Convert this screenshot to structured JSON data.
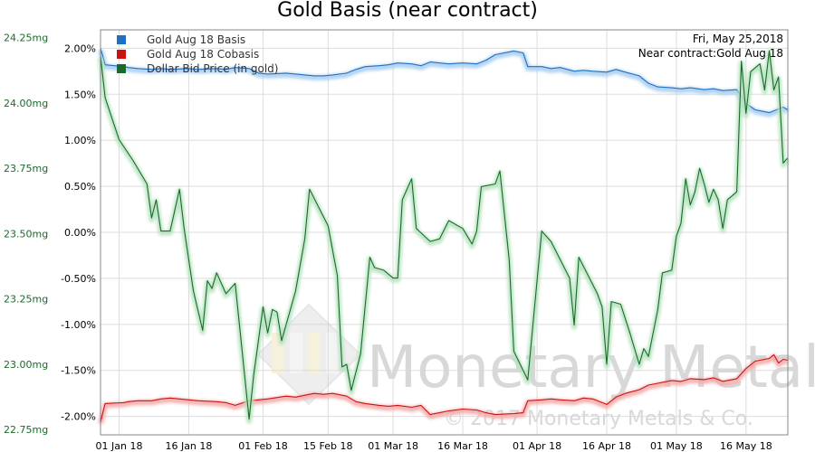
{
  "chart_data": {
    "type": "line",
    "title": "Gold Basis (near contract)",
    "date_label": "Fri, May 25,2018",
    "contract_label": "Near contract:Gold Aug 18",
    "watermark": {
      "brand": "Monetary Metals",
      "copyright": "© 2017 Monetary Metals & Co."
    },
    "grid": true,
    "legend": {
      "placement": "top-left"
    },
    "x_axis": {
      "range": [
        "2017-12-28",
        "2018-05-25"
      ],
      "ticks": [
        {
          "date": "2018-01-01",
          "label": "01 Jan 18"
        },
        {
          "date": "2018-01-16",
          "label": "16 Jan 18"
        },
        {
          "date": "2018-02-01",
          "label": "01 Feb 18"
        },
        {
          "date": "2018-02-15",
          "label": "15 Feb 18"
        },
        {
          "date": "2018-03-01",
          "label": "01 Mar 18"
        },
        {
          "date": "2018-03-16",
          "label": "16 Mar 18"
        },
        {
          "date": "2018-04-01",
          "label": "01 Apr 18"
        },
        {
          "date": "2018-04-16",
          "label": "16 Apr 18"
        },
        {
          "date": "2018-05-01",
          "label": "01 May 18"
        },
        {
          "date": "2018-05-16",
          "label": "16 May 18"
        }
      ]
    },
    "y_right": {
      "range": [
        -2.2,
        2.2
      ],
      "ticks": [
        {
          "value": 2.0,
          "label": "2.00%"
        },
        {
          "value": 1.5,
          "label": "1.50%"
        },
        {
          "value": 1.0,
          "label": "1.00%"
        },
        {
          "value": 0.5,
          "label": "0.50%"
        },
        {
          "value": 0.0,
          "label": "0.00%"
        },
        {
          "value": -0.5,
          "label": "-0.50%"
        },
        {
          "value": -1.0,
          "label": "-1.00%"
        },
        {
          "value": -1.5,
          "label": "-1.50%"
        },
        {
          "value": -2.0,
          "label": "-2.00%"
        }
      ]
    },
    "y_left": {
      "range": [
        22.73,
        24.28
      ],
      "ticks": [
        {
          "value": 24.25,
          "label": "24.25mg"
        },
        {
          "value": 24.0,
          "label": "24.00mg"
        },
        {
          "value": 23.75,
          "label": "23.75mg"
        },
        {
          "value": 23.5,
          "label": "23.50mg"
        },
        {
          "value": 23.25,
          "label": "23.25mg"
        },
        {
          "value": 23.0,
          "label": "23.00mg"
        },
        {
          "value": 22.75,
          "label": "22.75mg"
        }
      ]
    },
    "series": [
      {
        "name": "Gold Aug 18 Basis",
        "axis": "right",
        "color": "#1f6fc2",
        "glow": "#a9cdf0",
        "points": [
          [
            "2017-12-28",
            2.0
          ],
          [
            "2017-12-29",
            1.82
          ],
          [
            "2018-01-02",
            1.8
          ],
          [
            "2018-01-03",
            1.79
          ],
          [
            "2018-01-05",
            1.78
          ],
          [
            "2018-01-08",
            1.77
          ],
          [
            "2018-01-10",
            1.78
          ],
          [
            "2018-01-12",
            1.77
          ],
          [
            "2018-01-16",
            1.78
          ],
          [
            "2018-01-18",
            1.77
          ],
          [
            "2018-01-22",
            1.78
          ],
          [
            "2018-01-24",
            1.77
          ],
          [
            "2018-01-26",
            1.79
          ],
          [
            "2018-01-29",
            1.78
          ],
          [
            "2018-01-31",
            1.73
          ],
          [
            "2018-02-02",
            1.72
          ],
          [
            "2018-02-06",
            1.73
          ],
          [
            "2018-02-08",
            1.72
          ],
          [
            "2018-02-12",
            1.7
          ],
          [
            "2018-02-14",
            1.7
          ],
          [
            "2018-02-16",
            1.71
          ],
          [
            "2018-02-19",
            1.73
          ],
          [
            "2018-02-21",
            1.77
          ],
          [
            "2018-02-23",
            1.8
          ],
          [
            "2018-02-26",
            1.81
          ],
          [
            "2018-02-28",
            1.82
          ],
          [
            "2018-03-02",
            1.84
          ],
          [
            "2018-03-05",
            1.83
          ],
          [
            "2018-03-07",
            1.81
          ],
          [
            "2018-03-09",
            1.85
          ],
          [
            "2018-03-13",
            1.83
          ],
          [
            "2018-03-16",
            1.84
          ],
          [
            "2018-03-19",
            1.83
          ],
          [
            "2018-03-21",
            1.87
          ],
          [
            "2018-03-23",
            1.93
          ],
          [
            "2018-03-27",
            1.97
          ],
          [
            "2018-03-29",
            1.95
          ],
          [
            "2018-03-30",
            1.8
          ],
          [
            "2018-04-02",
            1.8
          ],
          [
            "2018-04-04",
            1.78
          ],
          [
            "2018-04-06",
            1.79
          ],
          [
            "2018-04-09",
            1.75
          ],
          [
            "2018-04-11",
            1.76
          ],
          [
            "2018-04-13",
            1.75
          ],
          [
            "2018-04-16",
            1.74
          ],
          [
            "2018-04-18",
            1.77
          ],
          [
            "2018-04-20",
            1.74
          ],
          [
            "2018-04-23",
            1.7
          ],
          [
            "2018-04-25",
            1.62
          ],
          [
            "2018-04-27",
            1.58
          ],
          [
            "2018-04-30",
            1.57
          ],
          [
            "2018-05-02",
            1.56
          ],
          [
            "2018-05-04",
            1.57
          ],
          [
            "2018-05-07",
            1.55
          ],
          [
            "2018-05-09",
            1.56
          ],
          [
            "2018-05-11",
            1.54
          ],
          [
            "2018-05-14",
            1.55
          ],
          [
            "2018-05-16",
            1.4
          ],
          [
            "2018-05-18",
            1.33
          ],
          [
            "2018-05-21",
            1.3
          ],
          [
            "2018-05-23",
            1.34
          ],
          [
            "2018-05-24",
            1.36
          ],
          [
            "2018-05-25",
            1.33
          ]
        ]
      },
      {
        "name": "Gold Aug 18 Cobasis",
        "axis": "right",
        "color": "#cc1111",
        "glow": "#f2aaaa",
        "points": [
          [
            "2017-12-28",
            -2.06
          ],
          [
            "2017-12-29",
            -1.86
          ],
          [
            "2018-01-02",
            -1.85
          ],
          [
            "2018-01-03",
            -1.84
          ],
          [
            "2018-01-05",
            -1.83
          ],
          [
            "2018-01-08",
            -1.83
          ],
          [
            "2018-01-10",
            -1.81
          ],
          [
            "2018-01-12",
            -1.8
          ],
          [
            "2018-01-16",
            -1.82
          ],
          [
            "2018-01-18",
            -1.83
          ],
          [
            "2018-01-22",
            -1.84
          ],
          [
            "2018-01-24",
            -1.85
          ],
          [
            "2018-01-26",
            -1.88
          ],
          [
            "2018-01-29",
            -1.83
          ],
          [
            "2018-01-31",
            -1.82
          ],
          [
            "2018-02-02",
            -1.81
          ],
          [
            "2018-02-06",
            -1.78
          ],
          [
            "2018-02-08",
            -1.79
          ],
          [
            "2018-02-12",
            -1.75
          ],
          [
            "2018-02-14",
            -1.76
          ],
          [
            "2018-02-16",
            -1.75
          ],
          [
            "2018-02-19",
            -1.78
          ],
          [
            "2018-02-21",
            -1.84
          ],
          [
            "2018-02-23",
            -1.86
          ],
          [
            "2018-02-26",
            -1.88
          ],
          [
            "2018-02-28",
            -1.89
          ],
          [
            "2018-03-02",
            -1.88
          ],
          [
            "2018-03-05",
            -1.9
          ],
          [
            "2018-03-07",
            -1.88
          ],
          [
            "2018-03-09",
            -1.98
          ],
          [
            "2018-03-13",
            -1.94
          ],
          [
            "2018-03-16",
            -1.92
          ],
          [
            "2018-03-19",
            -1.93
          ],
          [
            "2018-03-21",
            -1.96
          ],
          [
            "2018-03-23",
            -1.98
          ],
          [
            "2018-03-27",
            -1.97
          ],
          [
            "2018-03-29",
            -1.96
          ],
          [
            "2018-03-30",
            -1.83
          ],
          [
            "2018-04-02",
            -1.82
          ],
          [
            "2018-04-04",
            -1.81
          ],
          [
            "2018-04-06",
            -1.82
          ],
          [
            "2018-04-09",
            -1.83
          ],
          [
            "2018-04-11",
            -1.8
          ],
          [
            "2018-04-13",
            -1.81
          ],
          [
            "2018-04-16",
            -1.87
          ],
          [
            "2018-04-18",
            -1.79
          ],
          [
            "2018-04-20",
            -1.75
          ],
          [
            "2018-04-23",
            -1.71
          ],
          [
            "2018-04-25",
            -1.66
          ],
          [
            "2018-04-27",
            -1.64
          ],
          [
            "2018-04-30",
            -1.61
          ],
          [
            "2018-05-02",
            -1.62
          ],
          [
            "2018-05-04",
            -1.59
          ],
          [
            "2018-05-07",
            -1.6
          ],
          [
            "2018-05-09",
            -1.58
          ],
          [
            "2018-05-11",
            -1.62
          ],
          [
            "2018-05-14",
            -1.59
          ],
          [
            "2018-05-16",
            -1.48
          ],
          [
            "2018-05-18",
            -1.4
          ],
          [
            "2018-05-21",
            -1.37
          ],
          [
            "2018-05-22",
            -1.33
          ],
          [
            "2018-05-23",
            -1.42
          ],
          [
            "2018-05-24",
            -1.38
          ],
          [
            "2018-05-25",
            -1.39
          ]
        ]
      },
      {
        "name": "Dollar Bid Price (in gold)",
        "axis": "left",
        "color": "#1a6b2a",
        "glow": "#b6e2bf",
        "points": [
          [
            "2017-12-28",
            24.18
          ],
          [
            "2017-12-29",
            24.02
          ],
          [
            "2018-01-01",
            23.86
          ],
          [
            "2018-01-04",
            23.78
          ],
          [
            "2018-01-07",
            23.69
          ],
          [
            "2018-01-08",
            23.56
          ],
          [
            "2018-01-09",
            23.63
          ],
          [
            "2018-01-10",
            23.51
          ],
          [
            "2018-01-12",
            23.51
          ],
          [
            "2018-01-14",
            23.67
          ],
          [
            "2018-01-15",
            23.52
          ],
          [
            "2018-01-17",
            23.28
          ],
          [
            "2018-01-19",
            23.13
          ],
          [
            "2018-01-20",
            23.32
          ],
          [
            "2018-01-21",
            23.29
          ],
          [
            "2018-01-22",
            23.35
          ],
          [
            "2018-01-24",
            23.27
          ],
          [
            "2018-01-26",
            23.31
          ],
          [
            "2018-01-29",
            22.79
          ],
          [
            "2018-01-30",
            22.96
          ],
          [
            "2018-02-01",
            23.22
          ],
          [
            "2018-02-02",
            23.12
          ],
          [
            "2018-02-03",
            23.21
          ],
          [
            "2018-02-04",
            23.2
          ],
          [
            "2018-02-05",
            23.09
          ],
          [
            "2018-02-08",
            23.28
          ],
          [
            "2018-02-10",
            23.48
          ],
          [
            "2018-02-11",
            23.67
          ],
          [
            "2018-02-15",
            23.53
          ],
          [
            "2018-02-17",
            23.34
          ],
          [
            "2018-02-18",
            22.99
          ],
          [
            "2018-02-19",
            23.0
          ],
          [
            "2018-02-20",
            22.9
          ],
          [
            "2018-02-22",
            23.04
          ],
          [
            "2018-02-24",
            23.41
          ],
          [
            "2018-02-25",
            23.37
          ],
          [
            "2018-02-27",
            23.36
          ],
          [
            "2018-03-01",
            23.33
          ],
          [
            "2018-03-02",
            23.33
          ],
          [
            "2018-03-03",
            23.63
          ],
          [
            "2018-03-05",
            23.71
          ],
          [
            "2018-03-06",
            23.52
          ],
          [
            "2018-03-09",
            23.47
          ],
          [
            "2018-03-11",
            23.48
          ],
          [
            "2018-03-13",
            23.55
          ],
          [
            "2018-03-16",
            23.52
          ],
          [
            "2018-03-18",
            23.46
          ],
          [
            "2018-03-19",
            23.51
          ],
          [
            "2018-03-20",
            23.68
          ],
          [
            "2018-03-23",
            23.69
          ],
          [
            "2018-03-24",
            23.74
          ],
          [
            "2018-03-26",
            23.4
          ],
          [
            "2018-03-27",
            23.05
          ],
          [
            "2018-03-30",
            22.94
          ],
          [
            "2018-04-02",
            23.51
          ],
          [
            "2018-04-04",
            23.47
          ],
          [
            "2018-04-06",
            23.4
          ],
          [
            "2018-04-08",
            23.33
          ],
          [
            "2018-04-09",
            23.15
          ],
          [
            "2018-04-10",
            23.41
          ],
          [
            "2018-04-12",
            23.34
          ],
          [
            "2018-04-14",
            23.27
          ],
          [
            "2018-04-15",
            23.22
          ],
          [
            "2018-04-16",
            23.0
          ],
          [
            "2018-04-17",
            23.24
          ],
          [
            "2018-04-19",
            23.23
          ],
          [
            "2018-04-21",
            23.12
          ],
          [
            "2018-04-23",
            23.0
          ],
          [
            "2018-04-24",
            23.06
          ],
          [
            "2018-04-25",
            23.03
          ],
          [
            "2018-04-27",
            23.21
          ],
          [
            "2018-04-28",
            23.35
          ],
          [
            "2018-04-30",
            23.36
          ],
          [
            "2018-05-01",
            23.49
          ],
          [
            "2018-05-02",
            23.54
          ],
          [
            "2018-05-03",
            23.71
          ],
          [
            "2018-05-04",
            23.61
          ],
          [
            "2018-05-05",
            23.66
          ],
          [
            "2018-05-06",
            23.75
          ],
          [
            "2018-05-07",
            23.69
          ],
          [
            "2018-05-08",
            23.62
          ],
          [
            "2018-05-09",
            23.67
          ],
          [
            "2018-05-10",
            23.63
          ],
          [
            "2018-05-11",
            23.52
          ],
          [
            "2018-05-12",
            23.63
          ],
          [
            "2018-05-14",
            23.66
          ],
          [
            "2018-05-15",
            24.16
          ],
          [
            "2018-05-16",
            23.96
          ],
          [
            "2018-05-17",
            24.12
          ],
          [
            "2018-05-19",
            24.15
          ],
          [
            "2018-05-20",
            24.05
          ],
          [
            "2018-05-21",
            24.2
          ],
          [
            "2018-05-22",
            24.05
          ],
          [
            "2018-05-23",
            24.1
          ],
          [
            "2018-05-24",
            23.77
          ],
          [
            "2018-05-25",
            23.79
          ]
        ]
      }
    ]
  }
}
